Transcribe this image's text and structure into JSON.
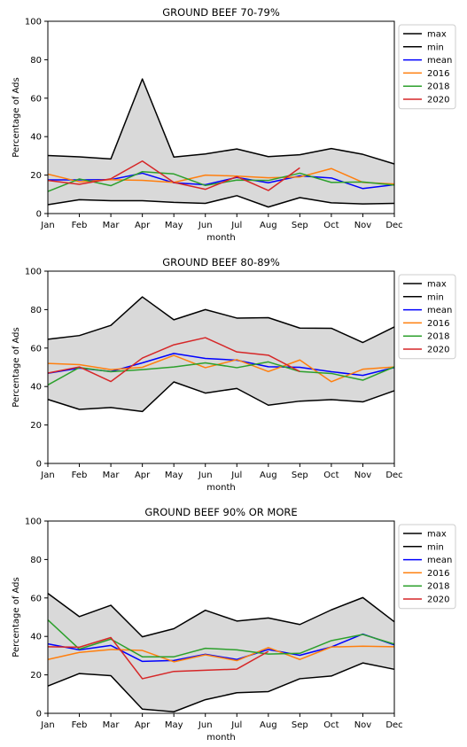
{
  "months": [
    "Jan",
    "Feb",
    "Mar",
    "Apr",
    "May",
    "Jun",
    "Jul",
    "Aug",
    "Sep",
    "Oct",
    "Nov",
    "Dec"
  ],
  "chart_data": [
    {
      "type": "line",
      "title": "GROUND BEEF 70-79%",
      "xlabel": "month",
      "ylabel": "Percentage of Ads",
      "ylim": [
        0,
        100
      ],
      "yticks": [
        "0",
        "20",
        "40",
        "60",
        "80",
        "100"
      ],
      "band_between": [
        "max",
        "min"
      ],
      "legend_position": "outside-top-right",
      "grid": false,
      "series": [
        {
          "name": "max",
          "color": "#000000",
          "values": [
            30.2,
            29.5,
            28.4,
            70,
            29.4,
            31,
            33.6,
            29.6,
            30.6,
            33.8,
            30.8,
            25.8
          ]
        },
        {
          "name": "min",
          "color": "#000000",
          "values": [
            4.6,
            7.2,
            6.7,
            6.7,
            5.8,
            5.3,
            9.3,
            3.4,
            8.3,
            5.6,
            5,
            5.3
          ]
        },
        {
          "name": "mean",
          "color": "#0000ff",
          "values": [
            17.5,
            17.5,
            17.6,
            21,
            16,
            15,
            18.8,
            16,
            19.6,
            18.5,
            13,
            15
          ]
        },
        {
          "name": "2016",
          "color": "#ff7f0e",
          "values": [
            20.5,
            16.5,
            17.6,
            17.3,
            16.2,
            20,
            19.5,
            18.6,
            19,
            23.4,
            16.2,
            15.4
          ]
        },
        {
          "name": "2018",
          "color": "#2ca02c",
          "values": [
            11.5,
            18,
            14.5,
            21.8,
            20.6,
            14.6,
            17.4,
            17.2,
            21,
            16.2,
            16.4,
            14.8
          ]
        },
        {
          "name": "2020",
          "color": "#d62728",
          "values": [
            17.2,
            15.2,
            18.1,
            27.3,
            16.2,
            12.6,
            19.2,
            12,
            23.8,
            null,
            null,
            null
          ]
        }
      ]
    },
    {
      "type": "line",
      "title": "GROUND BEEF 80-89%",
      "xlabel": "month",
      "ylabel": "Percentage of Ads",
      "ylim": [
        0,
        100
      ],
      "yticks": [
        "0",
        "20",
        "40",
        "60",
        "80",
        "100"
      ],
      "band_between": [
        "max",
        "min"
      ],
      "legend_position": "outside-top-right",
      "grid": false,
      "series": [
        {
          "name": "max",
          "color": "#000000",
          "values": [
            64.6,
            66.5,
            71.8,
            86.6,
            74.7,
            80,
            75.6,
            75.8,
            70.4,
            70.3,
            62.9,
            71
          ]
        },
        {
          "name": "min",
          "color": "#000000",
          "values": [
            33.3,
            28.1,
            29.1,
            27,
            42.4,
            36.6,
            39,
            30.3,
            32.4,
            33.2,
            32,
            37.8
          ]
        },
        {
          "name": "mean",
          "color": "#0000ff",
          "values": [
            46.9,
            49.6,
            47.8,
            52.3,
            57.2,
            54.6,
            53.7,
            50.3,
            50,
            47.7,
            45.8,
            49.9
          ]
        },
        {
          "name": "2016",
          "color": "#ff7f0e",
          "values": [
            52,
            51.4,
            48.8,
            50,
            56.2,
            49.8,
            54,
            47.8,
            53.8,
            42.5,
            49,
            50.2
          ]
        },
        {
          "name": "2018",
          "color": "#2ca02c",
          "values": [
            40.8,
            49.9,
            47.7,
            48.8,
            50.2,
            52.3,
            49.8,
            52.8,
            47.8,
            46.8,
            43.3,
            50.2
          ]
        },
        {
          "name": "2020",
          "color": "#d62728",
          "values": [
            47,
            50.2,
            42.6,
            54.8,
            61.7,
            65.4,
            58,
            56.3,
            47.8,
            null,
            null,
            null
          ]
        }
      ]
    },
    {
      "type": "line",
      "title": "GROUND BEEF 90% OR MORE",
      "xlabel": "month",
      "ylabel": "Percentage of Ads",
      "ylim": [
        0,
        100
      ],
      "yticks": [
        "0",
        "20",
        "40",
        "60",
        "80",
        "100"
      ],
      "band_between": [
        "max",
        "min"
      ],
      "legend_position": "outside-top-right",
      "grid": false,
      "series": [
        {
          "name": "max",
          "color": "#000000",
          "values": [
            62.4,
            50.3,
            56.2,
            39.8,
            44,
            53.6,
            48,
            49.6,
            46.2,
            53.8,
            60.2,
            47.6
          ]
        },
        {
          "name": "min",
          "color": "#000000",
          "values": [
            14.2,
            20.7,
            19.6,
            2.2,
            0.8,
            7.1,
            10.7,
            11.3,
            18,
            19.4,
            26.2,
            22.9
          ]
        },
        {
          "name": "mean",
          "color": "#0000ff",
          "values": [
            36.1,
            33,
            35.3,
            27,
            27.5,
            30.7,
            28,
            33.2,
            30.2,
            34.5,
            41.2,
            35.6
          ]
        },
        {
          "name": "2016",
          "color": "#ff7f0e",
          "values": [
            28,
            31.7,
            33.2,
            32.7,
            26.8,
            30.4,
            27.4,
            34.2,
            28,
            34.5,
            34.9,
            34.6
          ]
        },
        {
          "name": "2018",
          "color": "#2ca02c",
          "values": [
            48.6,
            33.4,
            38.6,
            29.4,
            29.4,
            33.8,
            33,
            30.8,
            31.2,
            37.8,
            41,
            36
          ]
        },
        {
          "name": "2020",
          "color": "#d62728",
          "values": [
            34.6,
            34.4,
            39.4,
            18,
            21.8,
            22.4,
            23,
            32.2,
            null,
            null,
            null,
            null
          ]
        }
      ]
    }
  ]
}
